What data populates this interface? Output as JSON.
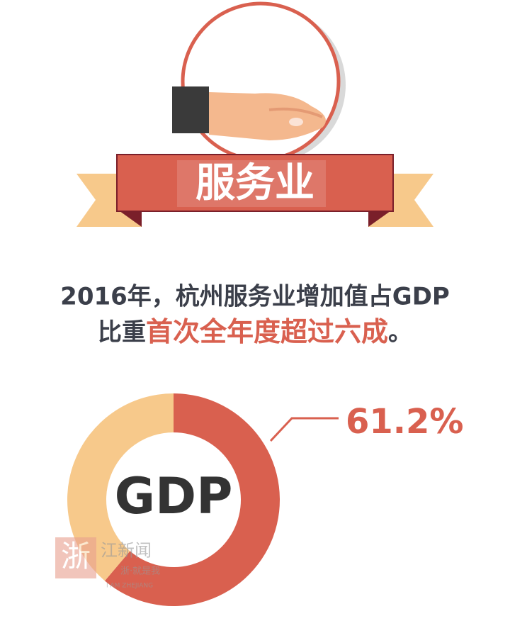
{
  "header": {
    "title": "服务业"
  },
  "headline": {
    "line1": "2016年，杭州服务业增加值占GDP",
    "line2_before": "比重",
    "line2_highlight": "首次全年度超过六成",
    "line2_after": "。"
  },
  "chart_data": {
    "type": "donut",
    "center_label": "GDP",
    "values": [
      61.2,
      38.8
    ],
    "value_labels": [
      "61.2%",
      null
    ],
    "colors": [
      "#d9604f",
      "#f7c98b"
    ]
  },
  "watermark": {
    "logo": "浙",
    "name": "江新闻",
    "slogan": "浙·就是我",
    "english": "I AM ZHEJIANG"
  }
}
